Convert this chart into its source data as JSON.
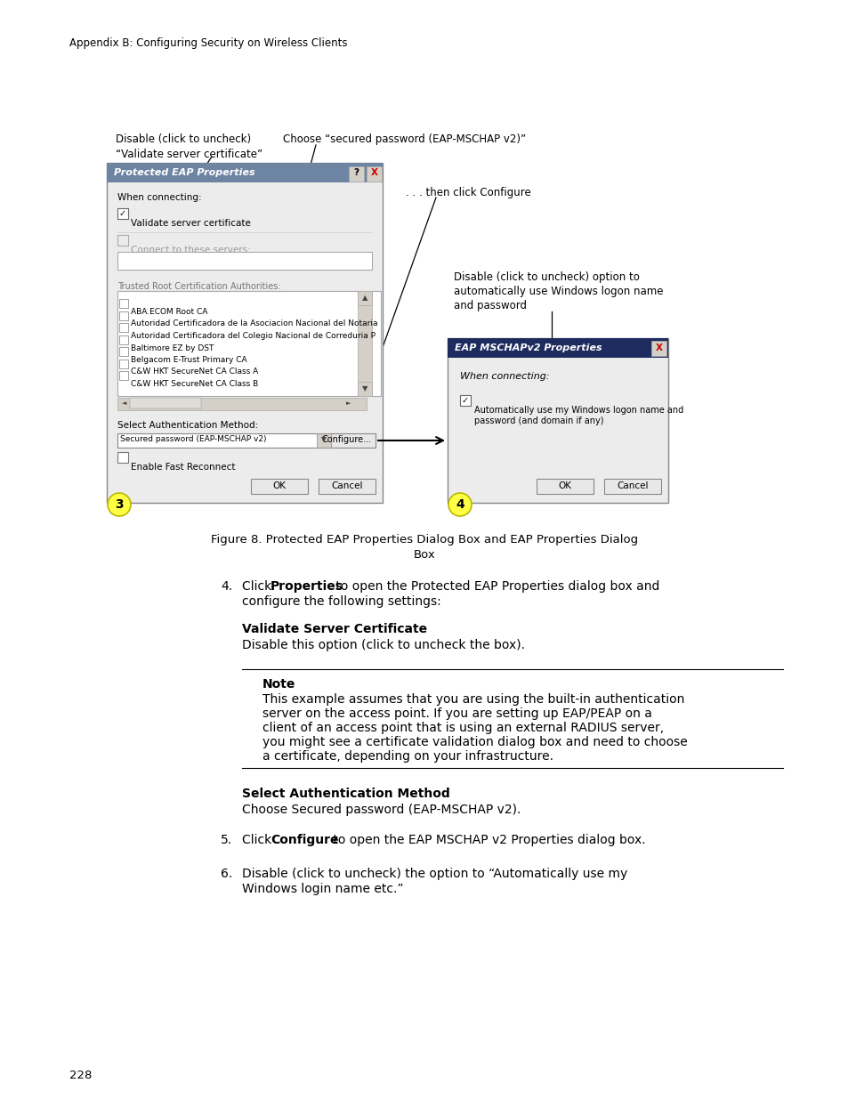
{
  "page_header": "Appendix B: Configuring Security on Wireless Clients",
  "page_number": "228",
  "annotation1_line1": "Disable (click to uncheck)",
  "annotation1_line2": "“Validate server certificate”",
  "annotation2": "Choose “secured password (EAP-MSCHAP v2)”",
  "annotation3": ". . . then click Configure",
  "annotation4_line1": "Disable (click to uncheck) option to",
  "annotation4_line2": "automatically use Windows logon name",
  "annotation4_line3": "and password",
  "figure_caption_line1": "Figure 8. Protected EAP Properties Dialog Box and EAP Properties Dialog",
  "figure_caption_line2": "Box",
  "step4_prefix": "4. Click ",
  "step4_bold": "Properties",
  "step4_suffix": " to open the Protected EAP Properties dialog box and",
  "step4_line2": "configure the following settings:",
  "heading1": "Validate Server Certificate",
  "para1": "Disable this option (click to uncheck the box).",
  "note_bold": "Note",
  "note_line1": "This example assumes that you are using the built-in authentication",
  "note_line2": "server on the access point. If you are setting up EAP/PEAP on a",
  "note_line3": "client of an access point that is using an external RADIUS server,",
  "note_line4": "you might see a certificate validation dialog box and need to choose",
  "note_line5": "a certificate, depending on your infrastructure.",
  "heading2": "Select Authentication Method",
  "para2": "Choose Secured password (EAP-MSCHAP v2).",
  "step5_prefix": "5. Click ",
  "step5_bold": "Configure",
  "step5_suffix": " to open the EAP MSCHAP v2 Properties dialog box.",
  "step6_prefix": "6. ",
  "step6_line1": "Disable (click to uncheck) the option to “Automatically use my",
  "step6_line2": "Windows login name etc.”",
  "bg_color": "#ffffff",
  "text_color": "#000000"
}
